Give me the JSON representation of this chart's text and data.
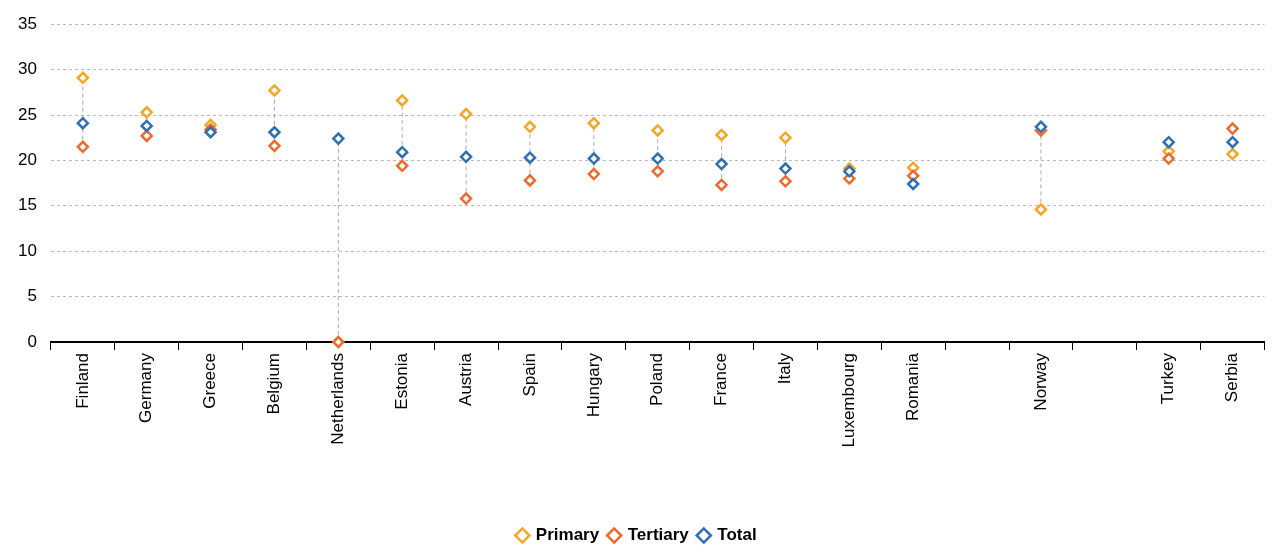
{
  "chart_data": {
    "type": "scatter",
    "categories": [
      "Finland",
      "Germany",
      "Greece",
      "Belgium",
      "Netherlands",
      "Estonia",
      "Austria",
      "Spain",
      "Hungary",
      "Poland",
      "France",
      "Italy",
      "Luxembourg",
      "Romania",
      null,
      "Norway",
      null,
      "Turkey",
      "Serbia"
    ],
    "series": [
      {
        "name": "Primary",
        "color": "#f5a623",
        "values": [
          29.1,
          25.3,
          23.9,
          27.7,
          null,
          26.6,
          25.1,
          23.7,
          24.1,
          23.3,
          22.8,
          22.5,
          19.1,
          19.2,
          null,
          14.6,
          null,
          21.0,
          20.7
        ]
      },
      {
        "name": "Tertiary",
        "color": "#ed6a2a",
        "values": [
          21.5,
          22.7,
          23.4,
          21.6,
          0,
          19.4,
          15.8,
          17.8,
          18.5,
          18.8,
          17.3,
          17.7,
          18.0,
          18.3,
          null,
          23.3,
          null,
          20.2,
          23.5
        ]
      },
      {
        "name": "Total",
        "color": "#2f6fb5",
        "values": [
          24.1,
          23.8,
          23.1,
          23.1,
          22.4,
          20.9,
          20.4,
          20.3,
          20.2,
          20.2,
          19.6,
          19.1,
          18.8,
          17.4,
          null,
          23.7,
          null,
          22.0,
          22.0
        ]
      }
    ],
    "ylim": [
      0,
      35
    ],
    "yticks": [
      0,
      5,
      10,
      15,
      20,
      25,
      30,
      35
    ],
    "grid": "y",
    "legend": "bottom",
    "marker": "diamond"
  }
}
